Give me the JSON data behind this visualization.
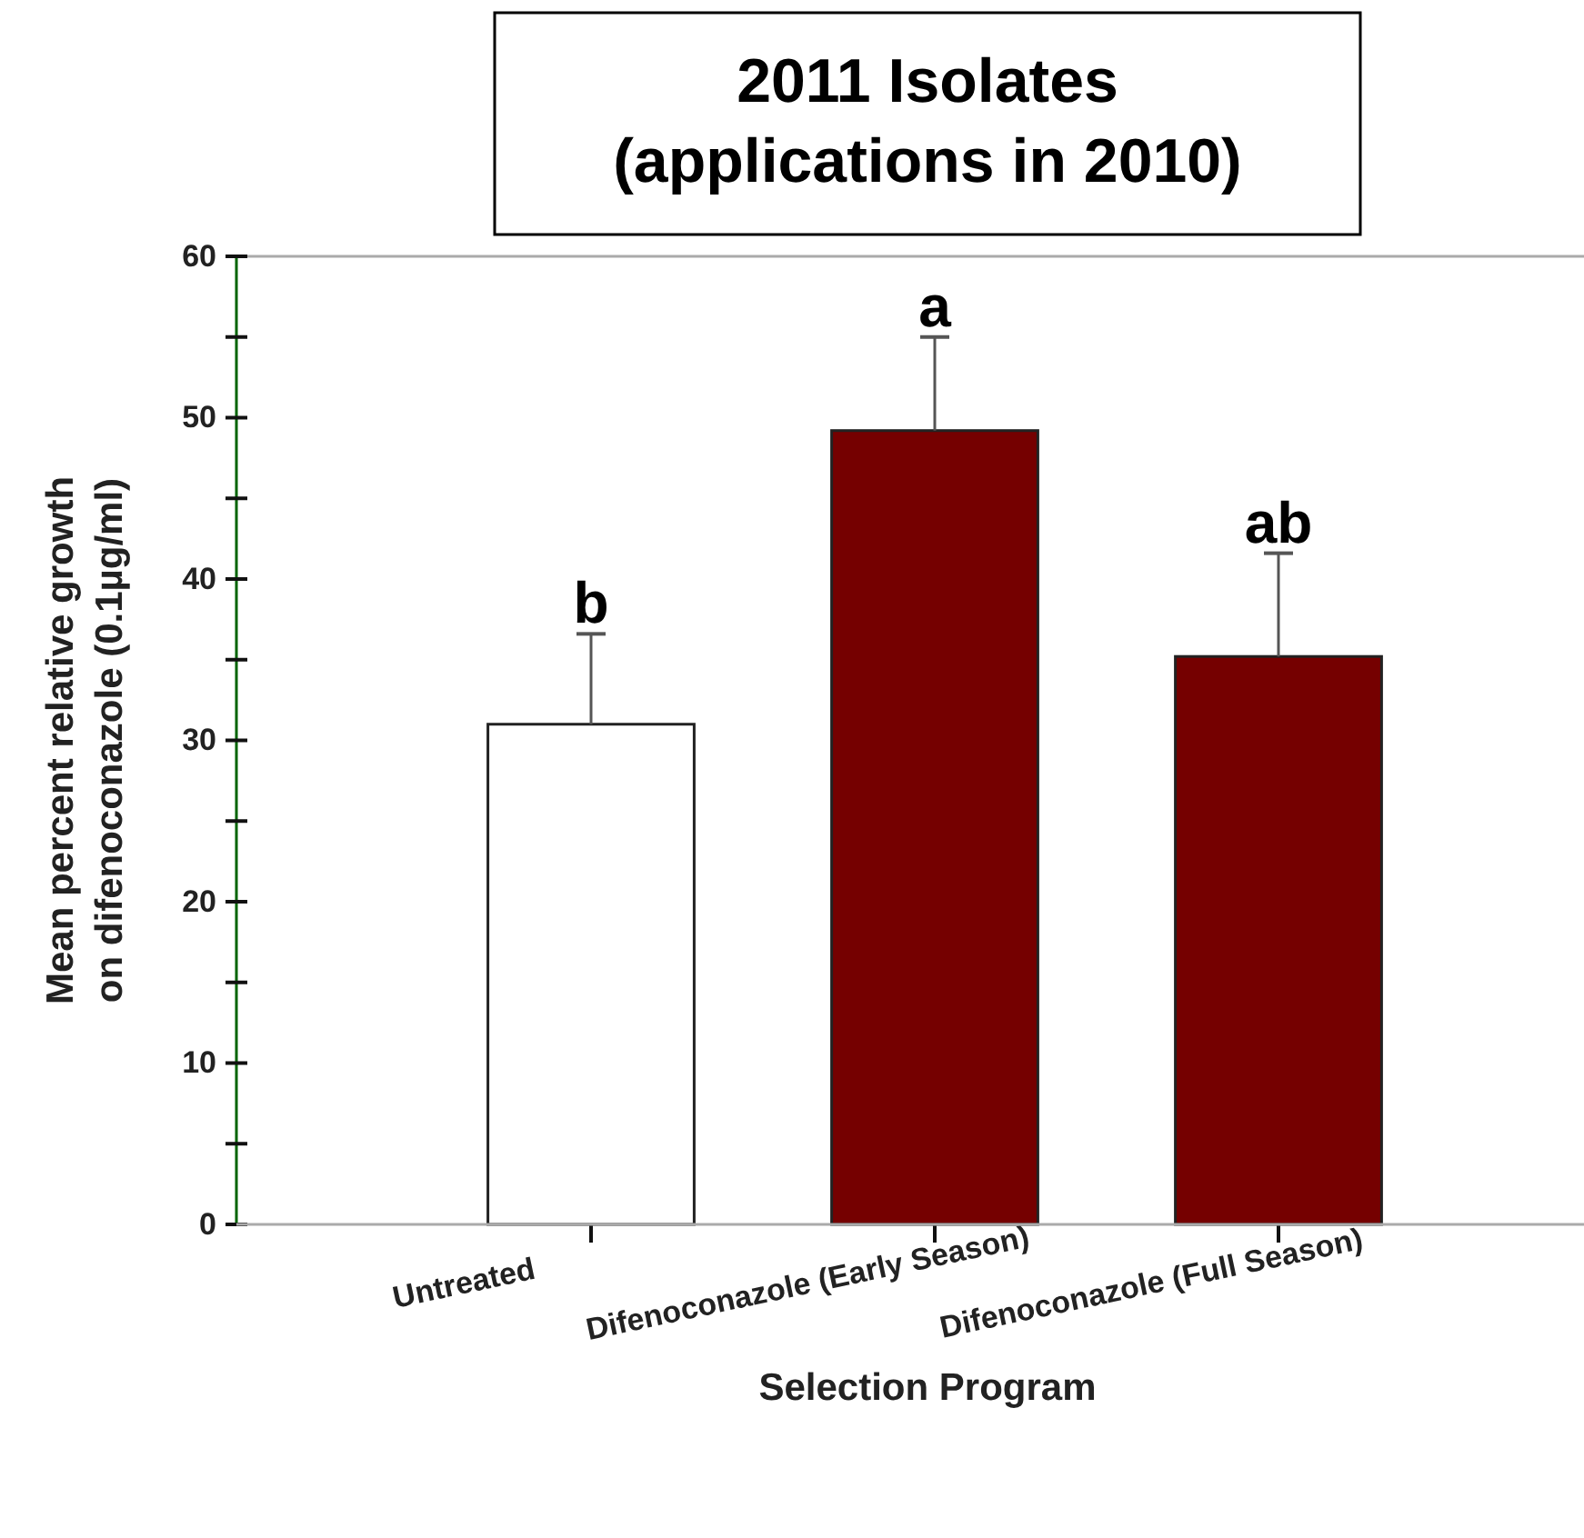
{
  "chart_data": {
    "type": "bar",
    "title": "2011 Isolates\n(applications in 2010)",
    "xlabel": "Selection Program",
    "ylabel": "Mean percent relative growth\non difenoconazole (0.1µg/ml)",
    "categories": [
      "Untreated",
      "Difenoconazole (Early Season)",
      "Difenoconazole (Full Season)"
    ],
    "values": [
      31,
      49.2,
      35.2
    ],
    "colors": [
      "#ffffff",
      "#750000",
      "#750000"
    ],
    "errors": [
      [
        31,
        36.6
      ],
      [
        49.2,
        55
      ],
      [
        35.2,
        41.6
      ]
    ],
    "ylim": [
      0,
      60
    ],
    "yticks": [
      0,
      {
        "value": 5,
        "label": null
      },
      10,
      {
        "value": 15,
        "label": null
      },
      20,
      {
        "value": 25,
        "label": null
      },
      30,
      {
        "value": 35,
        "label": null
      },
      40,
      {
        "value": 45,
        "label": null
      },
      50,
      {
        "value": 55,
        "label": null
      },
      60
    ],
    "annotations": [
      "b",
      "a",
      "ab"
    ]
  }
}
